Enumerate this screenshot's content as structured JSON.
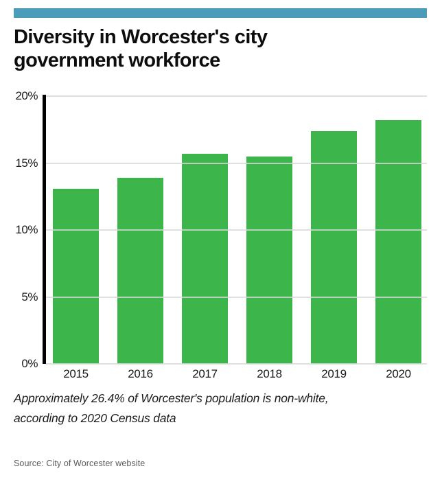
{
  "page": {
    "title_lines": [
      "Diversity in Worcester's city",
      "government workforce"
    ],
    "footnote_lines": [
      "Approximately 26.4% of Worcester's population is non-white,",
      "according to 2020 Census data"
    ],
    "source": "Source: City of Worcester website"
  },
  "colors": {
    "accent_bar": "#4a9cb8",
    "bar_green": "#3cb54b",
    "gridline": "#d8d8d8",
    "source_text": "#595959"
  },
  "chart_data": {
    "type": "bar",
    "title": "Diversity in Worcester's city government workforce",
    "categories": [
      "2015",
      "2016",
      "2017",
      "2018",
      "2019",
      "2020"
    ],
    "values": [
      13.1,
      13.9,
      15.7,
      15.5,
      17.4,
      18.2
    ],
    "xlabel": "",
    "ylabel": "",
    "ylim": [
      0,
      20
    ],
    "yticks": [
      0,
      5,
      10,
      15,
      20
    ],
    "ytick_suffix": "%",
    "grid": true,
    "gridlines_over_bars": true,
    "legend": "none",
    "annotation": "Approximately 26.4% of Worcester's population is non-white, according to 2020 Census data"
  }
}
